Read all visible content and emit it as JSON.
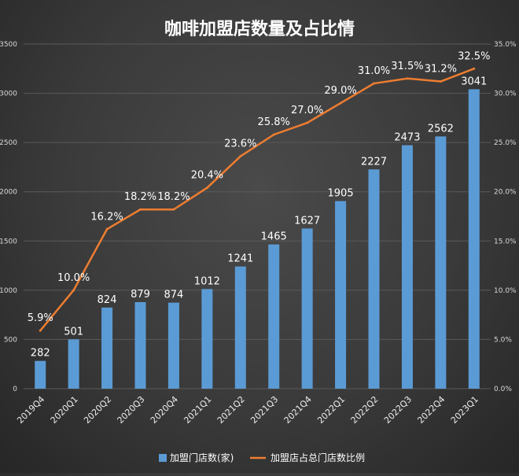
{
  "chart_data": {
    "type": "bar",
    "title": "咖啡加盟店数量及占比情",
    "categories": [
      "2019Q4",
      "2020Q1",
      "2020Q2",
      "2020Q3",
      "2020Q4",
      "2021Q1",
      "2021Q2",
      "2021Q3",
      "2021Q4",
      "2022Q1",
      "2022Q2",
      "2022Q3",
      "2022Q4",
      "2023Q1"
    ],
    "series": [
      {
        "name": "加盟门店数(家)",
        "type": "bar",
        "axis": "left",
        "color": "#5b9bd5",
        "values": [
          282,
          501,
          824,
          879,
          874,
          1012,
          1241,
          1465,
          1627,
          1905,
          2227,
          2473,
          2562,
          3041
        ],
        "labels": [
          "282",
          "501",
          "824",
          "879",
          "874",
          "1012",
          "1241",
          "1465",
          "1627",
          "1905",
          "2227",
          "2473",
          "2562",
          "3041"
        ]
      },
      {
        "name": "加盟店占总门店数比例",
        "type": "line",
        "axis": "right",
        "color": "#ed7d31",
        "values": [
          5.9,
          10.0,
          16.2,
          18.2,
          18.2,
          20.4,
          23.6,
          25.8,
          27.0,
          29.0,
          31.0,
          31.5,
          31.2,
          32.5
        ],
        "labels": [
          "5.9%",
          "10.0%",
          "16.2%",
          "18.2%",
          "18.2%",
          "20.4%",
          "23.6%",
          "25.8%",
          "27.0%",
          "29.0%",
          "31.0%",
          "31.5%",
          "31.2%",
          "32.5%"
        ]
      }
    ],
    "yleft": {
      "lim": [
        0,
        3500
      ],
      "ticks": [
        "0",
        "500",
        "1000",
        "1500",
        "2000",
        "2500",
        "3000",
        "3500"
      ]
    },
    "yright": {
      "lim": [
        0,
        35
      ],
      "ticks": [
        "0.0%",
        "5.0%",
        "10.0%",
        "15.0%",
        "20.0%",
        "25.0%",
        "30.0%",
        "35.0%"
      ]
    },
    "grid": true,
    "legend": "bottom"
  }
}
